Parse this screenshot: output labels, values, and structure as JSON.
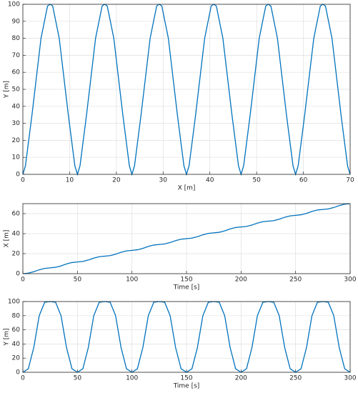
{
  "chart_data": [
    {
      "type": "line",
      "xlabel": "X [m]",
      "ylabel": "Y [m]",
      "x": [
        0,
        0.55,
        1.95,
        3.88,
        5.28,
        5.83,
        6.38,
        7.78,
        9.72,
        11.12,
        11.67,
        12.22,
        13.62,
        15.55,
        16.95,
        17.5,
        18.05,
        19.45,
        21.38,
        22.78,
        23.33,
        23.88,
        25.28,
        27.22,
        28.62,
        29.17,
        29.72,
        31.12,
        33.05,
        34.45,
        35,
        35.55,
        36.95,
        38.88,
        40.28,
        40.83,
        41.38,
        42.78,
        44.72,
        46.12,
        46.67,
        47.22,
        48.62,
        50.55,
        51.95,
        52.5,
        53.05,
        54.45,
        56.38,
        57.78,
        58.33,
        58.88,
        60.28,
        62.22,
        63.62,
        64.17,
        64.72,
        66.12,
        68.05,
        69.45,
        70
      ],
      "series": [
        {
          "color": "#0072bd",
          "values": [
            0,
            5,
            35,
            80,
            99,
            100,
            99,
            80,
            35,
            5,
            0,
            5,
            35,
            80,
            99,
            100,
            99,
            80,
            35,
            5,
            0,
            5,
            35,
            80,
            99,
            100,
            99,
            80,
            35,
            5,
            0,
            5,
            35,
            80,
            99,
            100,
            99,
            80,
            35,
            5,
            0,
            5,
            35,
            80,
            99,
            100,
            99,
            80,
            35,
            5,
            0,
            5,
            35,
            80,
            99,
            100,
            99,
            80,
            35,
            5,
            0
          ]
        }
      ],
      "xlim": [
        0,
        70
      ],
      "xticks": [
        0,
        10,
        20,
        30,
        40,
        50,
        60,
        70
      ],
      "ylim": [
        0,
        100
      ],
      "yticks": [
        0,
        10,
        20,
        30,
        40,
        50,
        60,
        70,
        80,
        90,
        100
      ],
      "grid": true
    },
    {
      "type": "line",
      "xlabel": "Time [s]",
      "ylabel": "X [m]",
      "x": [
        0,
        5,
        10,
        15,
        20,
        25,
        30,
        35,
        40,
        45,
        50,
        55,
        60,
        65,
        70,
        75,
        80,
        85,
        90,
        95,
        100,
        105,
        110,
        115,
        120,
        125,
        130,
        135,
        140,
        145,
        150,
        155,
        160,
        165,
        170,
        175,
        180,
        185,
        190,
        195,
        200,
        205,
        210,
        215,
        220,
        225,
        230,
        235,
        240,
        245,
        250,
        255,
        260,
        265,
        270,
        275,
        280,
        285,
        290,
        295,
        300
      ],
      "series": [
        {
          "color": "#0072bd",
          "values": [
            0,
            0.55,
            1.95,
            3.88,
            5.28,
            5.83,
            6.38,
            7.78,
            9.72,
            11.12,
            11.67,
            12.22,
            13.62,
            15.55,
            16.95,
            17.5,
            18.05,
            19.45,
            21.38,
            22.78,
            23.33,
            23.88,
            25.28,
            27.22,
            28.62,
            29.17,
            29.72,
            31.12,
            33.05,
            34.45,
            35,
            35.55,
            36.95,
            38.88,
            40.28,
            40.83,
            41.38,
            42.78,
            44.72,
            46.12,
            46.67,
            47.22,
            48.62,
            50.55,
            51.95,
            52.5,
            53.05,
            54.45,
            56.38,
            57.78,
            58.33,
            58.88,
            60.28,
            62.22,
            63.62,
            64.17,
            64.72,
            66.12,
            68.05,
            69.45,
            70
          ]
        }
      ],
      "xlim": [
        0,
        300
      ],
      "xticks": [
        0,
        50,
        100,
        150,
        200,
        250,
        300
      ],
      "ylim": [
        0,
        70
      ],
      "yticks": [
        0,
        20,
        40,
        60
      ],
      "grid": true
    },
    {
      "type": "line",
      "xlabel": "Time [s]",
      "ylabel": "Y [m]",
      "x": [
        0,
        5,
        10,
        15,
        20,
        25,
        30,
        35,
        40,
        45,
        50,
        55,
        60,
        65,
        70,
        75,
        80,
        85,
        90,
        95,
        100,
        105,
        110,
        115,
        120,
        125,
        130,
        135,
        140,
        145,
        150,
        155,
        160,
        165,
        170,
        175,
        180,
        185,
        190,
        195,
        200,
        205,
        210,
        215,
        220,
        225,
        230,
        235,
        240,
        245,
        250,
        255,
        260,
        265,
        270,
        275,
        280,
        285,
        290,
        295,
        300
      ],
      "series": [
        {
          "color": "#0072bd",
          "values": [
            0,
            5,
            35,
            80,
            99,
            100,
            99,
            80,
            35,
            5,
            0,
            5,
            35,
            80,
            99,
            100,
            99,
            80,
            35,
            5,
            0,
            5,
            35,
            80,
            99,
            100,
            99,
            80,
            35,
            5,
            0,
            5,
            35,
            80,
            99,
            100,
            99,
            80,
            35,
            5,
            0,
            5,
            35,
            80,
            99,
            100,
            99,
            80,
            35,
            5,
            0,
            5,
            35,
            80,
            99,
            100,
            99,
            80,
            35,
            5,
            0
          ]
        }
      ],
      "xlim": [
        0,
        300
      ],
      "xticks": [
        0,
        50,
        100,
        150,
        200,
        250,
        300
      ],
      "ylim": [
        0,
        100
      ],
      "yticks": [
        0,
        20,
        40,
        60,
        80,
        100
      ],
      "grid": true
    }
  ]
}
